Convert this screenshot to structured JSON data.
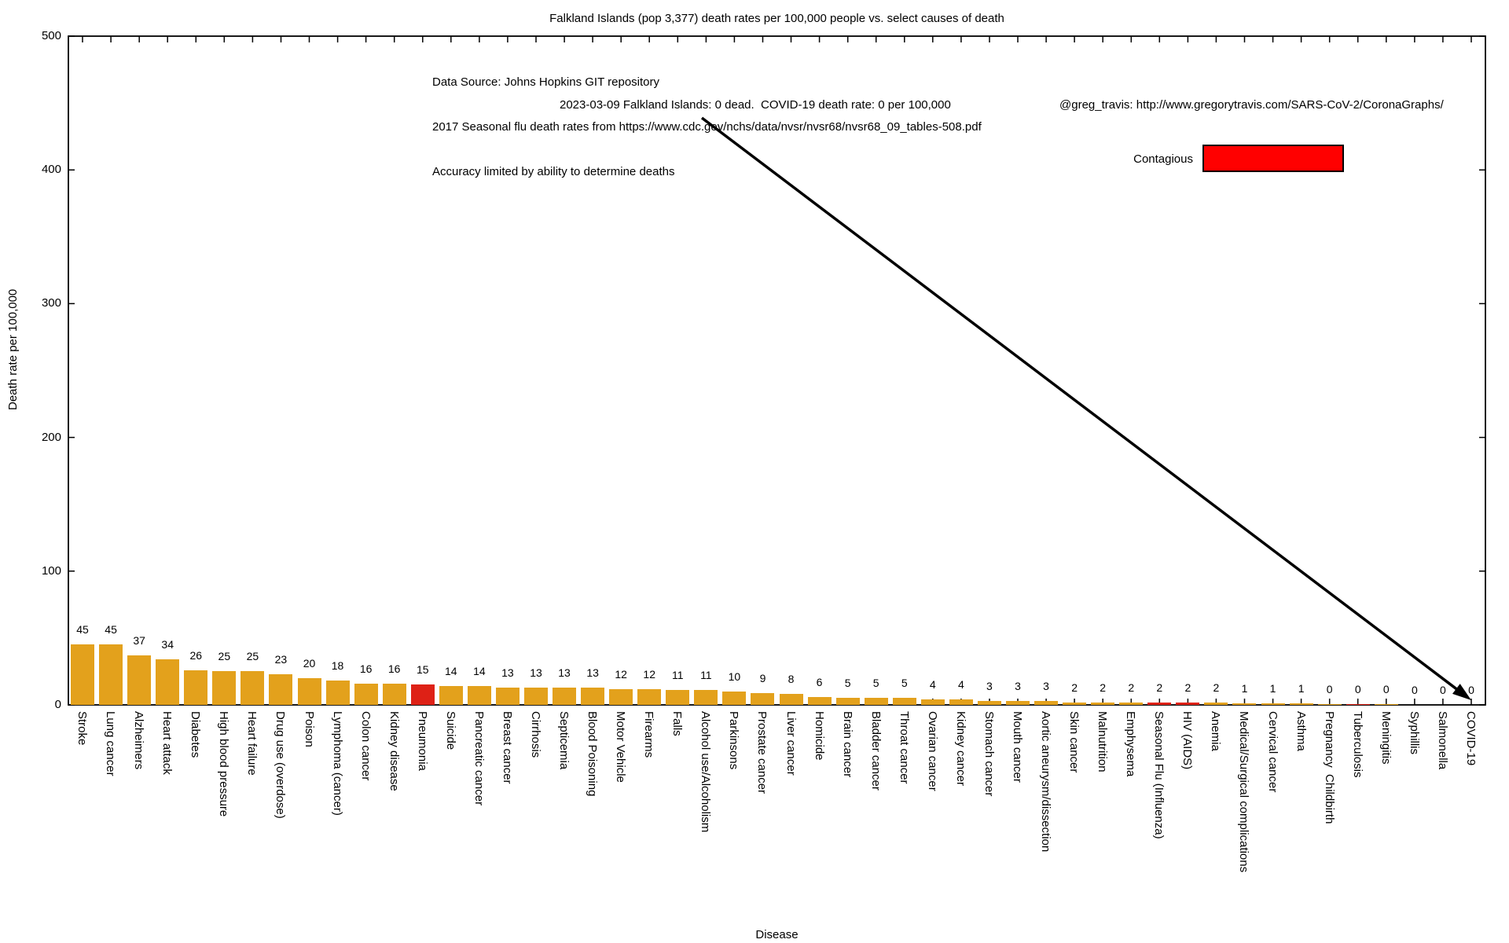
{
  "annotations": {
    "source_line1": "Data Source: Johns Hopkins GIT repository",
    "source_line2": "2017 Seasonal flu death rates from https://www.cdc.gov/nchs/data/nvsr/nvsr68/nvsr68_09_tables-508.pdf",
    "source_line3": "Accuracy limited by ability to determine deaths",
    "status_line": "2023-03-09 Falkland Islands: 0 dead.  COVID-19 death rate: 0 per 100,000",
    "credit": "@greg_travis: http://www.gregorytravis.com/SARS-CoV-2/CoronaGraphs/"
  },
  "legend": {
    "label": "Contagious",
    "swatch_color": "#FF0000"
  },
  "colors": {
    "background": "#FFFFFF",
    "axis": "#000000",
    "arrow": "#000000",
    "text": "#000000",
    "bar_default": "#E3A11C",
    "bar_contagious": "#DE2116"
  },
  "chart_data": {
    "type": "bar",
    "title": "Falkland Islands (pop 3,377) death rates per 100,000 people vs. select causes of death",
    "xlabel": "Disease",
    "ylabel": "Death rate per 100,000",
    "ylim": [
      0,
      500
    ],
    "yticks": [
      0,
      100,
      200,
      300,
      400,
      500
    ],
    "grid": false,
    "legend_position": "top-right-inside",
    "categories": [
      "Stroke",
      "Lung cancer",
      "Alzheimers",
      "Heart attack",
      "Diabetes",
      "High blood pressure",
      "Heart failure",
      "Drug use (overdose)",
      "Poison",
      "Lymphoma (cancer)",
      "Colon cancer",
      "Kidney disease",
      "Pneumonia",
      "Suicide",
      "Pancreatic cancer",
      "Breast cancer",
      "Cirrhosis",
      "Septicemia",
      "Blood Poisoning",
      "Motor Vehicle",
      "Firearms",
      "Falls",
      "Alcohol use/Alcoholism",
      "Parkinsons",
      "Prostate cancer",
      "Liver cancer",
      "Homicide",
      "Brain cancer",
      "Bladder cancer",
      "Throat cancer",
      "Ovarian cancer",
      "Kidney cancer",
      "Stomach cancer",
      "Mouth cancer",
      "Aortic aneurysm/dissection",
      "Skin cancer",
      "Malnutrition",
      "Emphysema",
      "Seasonal Flu (Influenza)",
      "HIV (AIDS)",
      "Anemia",
      "Medical/Surgical complications",
      "Cervical cancer",
      "Asthma",
      "Pregnancy  Childbirth",
      "Tuberculosis",
      "Meningitis",
      "Syphillis",
      "Salmonella",
      "COVID-19"
    ],
    "values": [
      45,
      45,
      37,
      34,
      26,
      25,
      25,
      23,
      20,
      18,
      16,
      16,
      15,
      14,
      14,
      13,
      13,
      13,
      13,
      12,
      12,
      11,
      11,
      10,
      9,
      8,
      6,
      5,
      5,
      5,
      4,
      4,
      3,
      3,
      3,
      2,
      2,
      2,
      2,
      2,
      2,
      1,
      1,
      1,
      0,
      0,
      0,
      0,
      0,
      0
    ],
    "contagious_categories": [
      "Pneumonia",
      "Seasonal Flu (Influenza)",
      "HIV (AIDS)",
      "Tuberculosis"
    ],
    "contagious_indices": [
      12,
      38,
      39,
      45
    ],
    "zero_value_trace_bar_indices": [
      44,
      45,
      46
    ]
  }
}
